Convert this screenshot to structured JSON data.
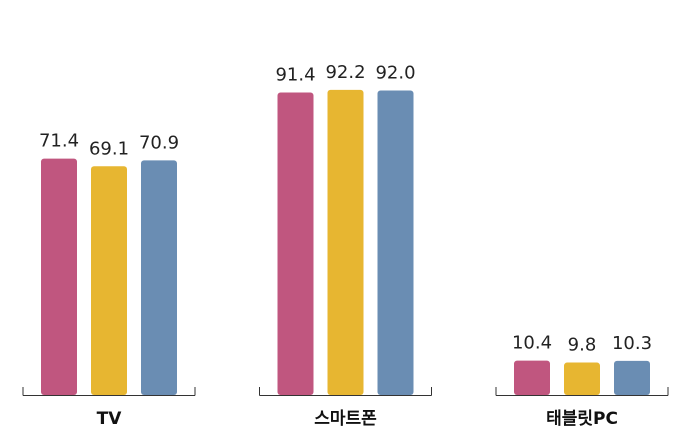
{
  "chart_data": {
    "type": "bar",
    "categories": [
      "TV",
      "스마트폰",
      "태블릿PC"
    ],
    "series": [
      {
        "color": "#c0567f",
        "values": [
          71.4,
          91.4,
          10.4
        ]
      },
      {
        "color": "#e7b631",
        "values": [
          69.1,
          92.2,
          9.8
        ]
      },
      {
        "color": "#6a8db3",
        "values": [
          70.9,
          92.0,
          10.3
        ],
        "value_labels": [
          "70.9",
          "92.0",
          "10.3"
        ]
      }
    ],
    "ylim": [
      0,
      100
    ]
  }
}
